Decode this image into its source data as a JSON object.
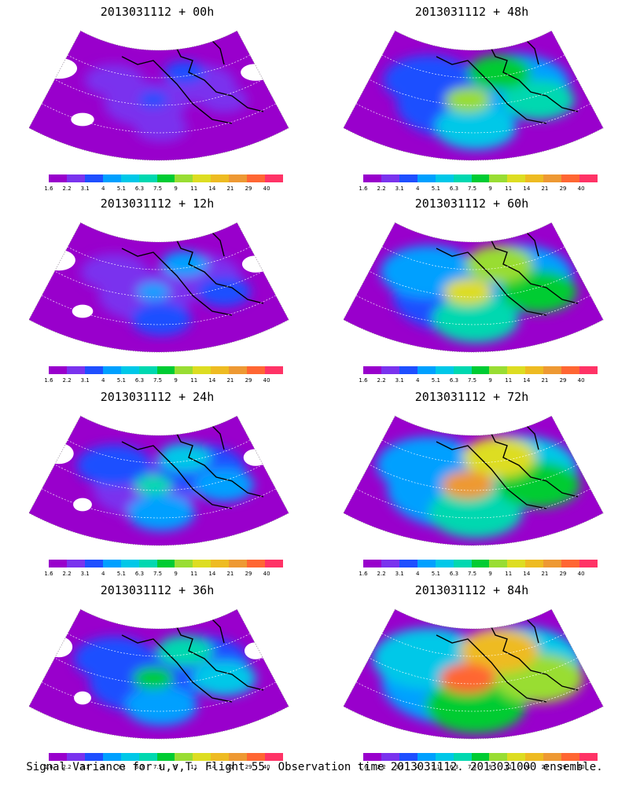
{
  "panels": [
    {
      "title": "2013031112 + 00h",
      "intensity": 0.15
    },
    {
      "title": "2013031112 + 48h",
      "intensity": 0.55
    },
    {
      "title": "2013031112 + 12h",
      "intensity": 0.25
    },
    {
      "title": "2013031112 + 60h",
      "intensity": 0.62
    },
    {
      "title": "2013031112 + 24h",
      "intensity": 0.35
    },
    {
      "title": "2013031112 + 72h",
      "intensity": 0.72
    },
    {
      "title": "2013031112 + 36h",
      "intensity": 0.42
    },
    {
      "title": "2013031112 + 84h",
      "intensity": 0.82
    }
  ],
  "colorbar": {
    "colors": [
      "#9900cc",
      "#7a33ee",
      "#1f4fff",
      "#00a0ff",
      "#00c8e8",
      "#00d8b0",
      "#00cc33",
      "#99dd33",
      "#dddd22",
      "#eebb22",
      "#ee9933",
      "#ff6633",
      "#ff3366"
    ],
    "labels": [
      "1.6",
      "2.2",
      "3.1",
      "4",
      "5.1",
      "6.3",
      "7.5",
      "9",
      "11",
      "14",
      "21",
      "29",
      "40"
    ]
  },
  "footer": "Signal Variance for u,v,T. Flight 55. Observation time 2013031112. 2013031000 ensemble."
}
